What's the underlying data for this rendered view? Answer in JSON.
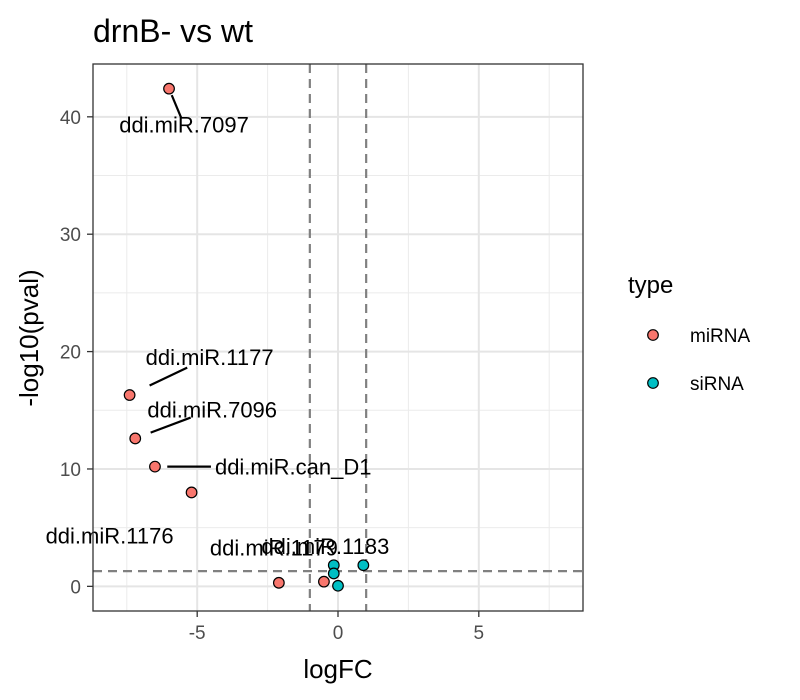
{
  "chart_data": {
    "type": "scatter",
    "title": "drnB- vs wt",
    "xlabel": "logFC",
    "ylabel": "-log10(pval)",
    "xlim": [
      -8.7,
      8.7
    ],
    "ylim": [
      -2.1,
      44.5
    ],
    "x_ticks": [
      -5,
      0,
      5
    ],
    "x_tick_labels": [
      "-5",
      "0",
      "5"
    ],
    "y_ticks": [
      0,
      10,
      20,
      30,
      40
    ],
    "y_tick_labels": [
      "0",
      "10",
      "20",
      "30",
      "40"
    ],
    "grid": true,
    "theme": "bw",
    "reference_lines": {
      "vertical": [
        -1,
        1
      ],
      "horizontal": [
        1.3
      ]
    },
    "legend": {
      "title": "type",
      "position": "right",
      "entries": [
        {
          "label": "miRNA",
          "color": "#F8766D"
        },
        {
          "label": "siRNA",
          "color": "#00BFC4"
        }
      ]
    },
    "series": [
      {
        "name": "miRNA",
        "color": "#F8766D",
        "points": [
          {
            "x": -6.0,
            "y": 42.4,
            "label": "ddi.miR.7097"
          },
          {
            "x": -7.4,
            "y": 16.3,
            "label": "ddi.miR.1177"
          },
          {
            "x": -7.2,
            "y": 12.6,
            "label": "ddi.miR.7096"
          },
          {
            "x": -6.5,
            "y": 10.2,
            "label": "ddi.miR.can_D1"
          },
          {
            "x": -5.2,
            "y": 8.0,
            "label": "ddi.miR.1176"
          },
          {
            "x": -2.1,
            "y": 0.3,
            "label": ""
          },
          {
            "x": -0.5,
            "y": 0.4,
            "label": "ddi.miR.1179"
          }
        ]
      },
      {
        "name": "siRNA",
        "color": "#00BFC4",
        "points": [
          {
            "x": -0.15,
            "y": 1.8,
            "label": ""
          },
          {
            "x": -0.15,
            "y": 1.1,
            "label": ""
          },
          {
            "x": 0.0,
            "y": 0.05,
            "label": ""
          },
          {
            "x": 0.9,
            "y": 1.8,
            "label": "ddi.miR.1183"
          }
        ]
      }
    ]
  }
}
